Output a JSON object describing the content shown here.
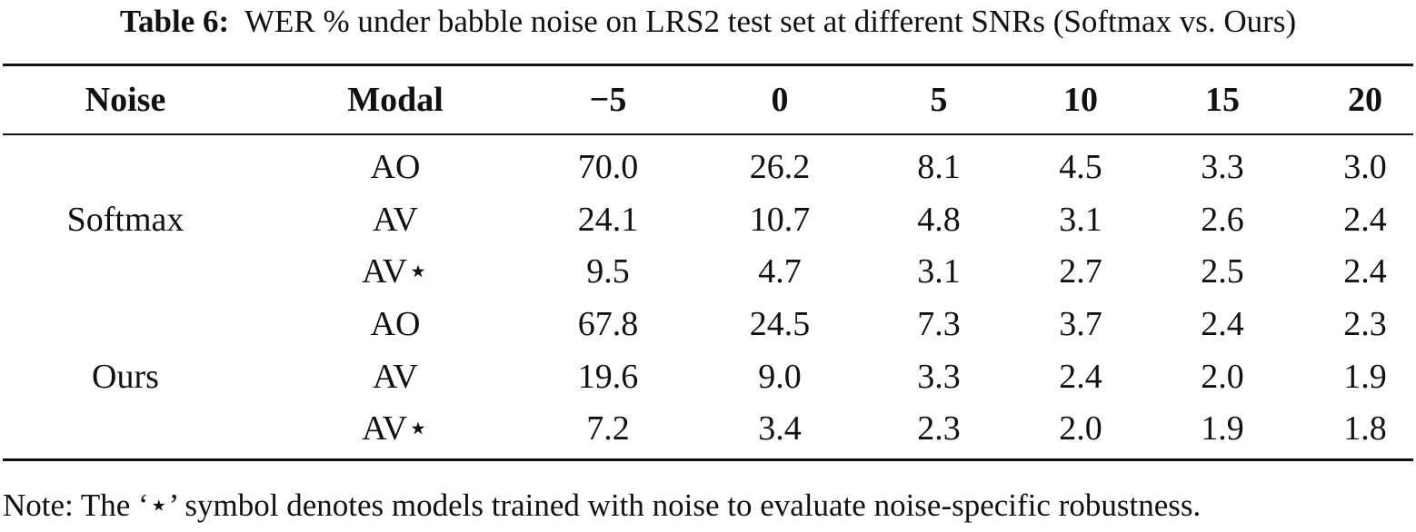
{
  "caption": {
    "label": "Table 6:",
    "text": "WER % under babble noise on LRS2 test set at different SNRs (Softmax vs. Ours)"
  },
  "table": {
    "headers": [
      "Noise",
      "Modal",
      "−5",
      "0",
      "5",
      "10",
      "15",
      "20"
    ],
    "groups": [
      {
        "noise": "Softmax",
        "rows": [
          {
            "modal": "AO",
            "values": [
              "70.0",
              "26.2",
              "8.1",
              "4.5",
              "3.3",
              "3.0"
            ]
          },
          {
            "modal": "AV",
            "values": [
              "24.1",
              "10.7",
              "4.8",
              "3.1",
              "2.6",
              "2.4"
            ]
          },
          {
            "modal": "AV⋆",
            "values": [
              "9.5",
              "4.7",
              "3.1",
              "2.7",
              "2.5",
              "2.4"
            ]
          }
        ]
      },
      {
        "noise": "Ours",
        "rows": [
          {
            "modal": "AO",
            "values": [
              "67.8",
              "24.5",
              "7.3",
              "3.7",
              "2.4",
              "2.3"
            ]
          },
          {
            "modal": "AV",
            "values": [
              "19.6",
              "9.0",
              "3.3",
              "2.4",
              "2.0",
              "1.9"
            ]
          },
          {
            "modal": "AV⋆",
            "values": [
              "7.2",
              "3.4",
              "2.3",
              "2.0",
              "1.9",
              "1.8"
            ]
          }
        ]
      }
    ]
  },
  "note": "Note: The ‘⋆’ symbol denotes models trained with noise to evaluate noise-specific robustness."
}
